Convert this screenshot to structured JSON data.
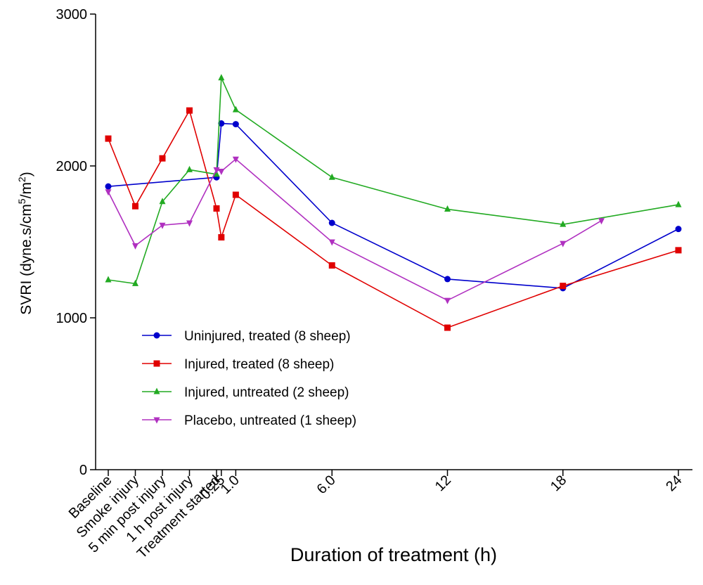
{
  "chart_data": {
    "type": "line",
    "xlabel": "Duration of treatment (h)",
    "ylabel": {
      "prefix": "SVRI (dyne.s/cm",
      "sup1": "5",
      "mid": "/m",
      "sup2": "2",
      "suffix": ")"
    },
    "ylim": [
      0,
      3000
    ],
    "yticks": [
      0,
      1000,
      2000,
      3000
    ],
    "categories": [
      "Baseline",
      "Smoke injury",
      "5 min post injury",
      "1 h post injury",
      "Treatment started",
      "0.25",
      "1.0",
      "6.0",
      "12",
      "18",
      "24"
    ],
    "legend_position": "bottom-left",
    "grid": false,
    "series": [
      {
        "name": "Uninjured, treated (8 sheep)",
        "color": "#0000cc",
        "marker": "circle",
        "points": [
          [
            "Baseline",
            1865
          ],
          [
            "Treatment started",
            1925
          ],
          [
            "0.25",
            2280
          ],
          [
            "1.0",
            2275
          ],
          [
            "6.0",
            1625
          ],
          [
            "12",
            1255
          ],
          [
            "18",
            1195
          ],
          [
            "24",
            1585
          ]
        ]
      },
      {
        "name": "Injured, treated (8 sheep)",
        "color": "#e00000",
        "marker": "square",
        "points": [
          [
            "Baseline",
            2180
          ],
          [
            "Smoke injury",
            1735
          ],
          [
            "5 min post injury",
            2050
          ],
          [
            "1 h post injury",
            2365
          ],
          [
            "Treatment started",
            1720
          ],
          [
            "0.25",
            1530
          ],
          [
            "1.0",
            1810
          ],
          [
            "6.0",
            1345
          ],
          [
            "12",
            935
          ],
          [
            "18",
            1210
          ],
          [
            "24",
            1445
          ]
        ]
      },
      {
        "name": "Injured, untreated (2 sheep)",
        "color": "#22aa22",
        "marker": "triangle-up",
        "points": [
          [
            "Baseline",
            1250
          ],
          [
            "Smoke injury",
            1225
          ],
          [
            "5 min post injury",
            1765
          ],
          [
            "1 h post injury",
            1975
          ],
          [
            "Treatment started",
            1945
          ],
          [
            "0.25",
            2580
          ],
          [
            "1.0",
            2370
          ],
          [
            "6.0",
            1925
          ],
          [
            "12",
            1715
          ],
          [
            "18",
            1615
          ],
          [
            "24",
            1745
          ]
        ]
      },
      {
        "name": "Placebo, untreated (1 sheep)",
        "color": "#b030c0",
        "marker": "triangle-down",
        "points": [
          [
            "Baseline",
            1830
          ],
          [
            "Smoke injury",
            1475
          ],
          [
            "5 min post injury",
            1610
          ],
          [
            "1 h post injury",
            1625
          ],
          [
            "Treatment started",
            1975
          ],
          [
            "0.25",
            1965
          ],
          [
            "1.0",
            2045
          ],
          [
            "6.0",
            1500
          ],
          [
            "12",
            1115
          ],
          [
            "18",
            1490
          ],
          [
            "20",
            1640
          ]
        ]
      }
    ]
  }
}
